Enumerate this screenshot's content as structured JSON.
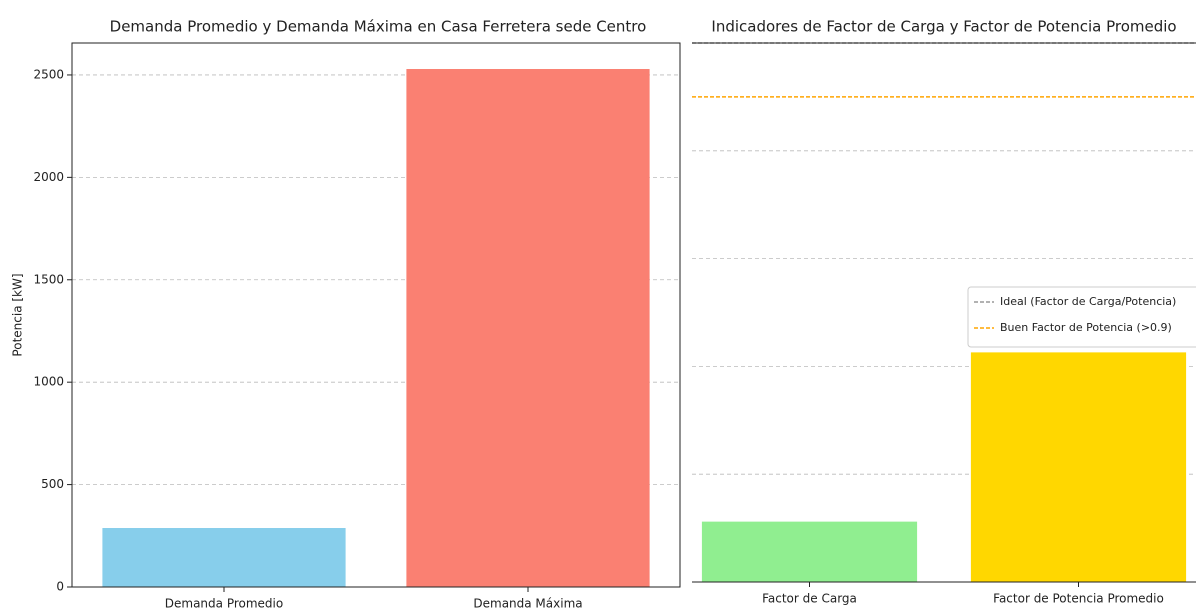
{
  "chart_data": [
    {
      "type": "bar",
      "title": "Demanda Promedio y Demanda Máxima en Casa Ferretera sede Centro",
      "ylabel": "Potencia [kW]",
      "categories": [
        "Demanda Promedio",
        "Demanda Máxima"
      ],
      "values": [
        288,
        2529
      ],
      "colors": [
        "#87ceeb",
        "#fa8072"
      ],
      "ylim": [
        0,
        2656
      ],
      "yticks": [
        0,
        500,
        1000,
        1500,
        2000,
        2500
      ],
      "grid": true
    },
    {
      "type": "bar",
      "title": "Indicadores de Factor de Carga y Factor de Potencia Promedio",
      "categories": [
        "Factor de Carga",
        "Factor de Potencia Promedio"
      ],
      "values": [
        0.112,
        0.426
      ],
      "colors": [
        "#90ee90",
        "#ffd700"
      ],
      "ylim": [
        0,
        1.0
      ],
      "yticks": [
        0,
        0.2,
        0.4,
        0.6,
        0.8,
        1.0
      ],
      "grid": true,
      "reference_lines": [
        {
          "name": "Ideal (Factor de Carga/Potencia)",
          "value": 1.0,
          "color": "#999999"
        },
        {
          "name": "Buen Factor de Potencia (>0.9)",
          "value": 0.9,
          "color": "#ffa500"
        }
      ],
      "legend": "center right"
    }
  ]
}
